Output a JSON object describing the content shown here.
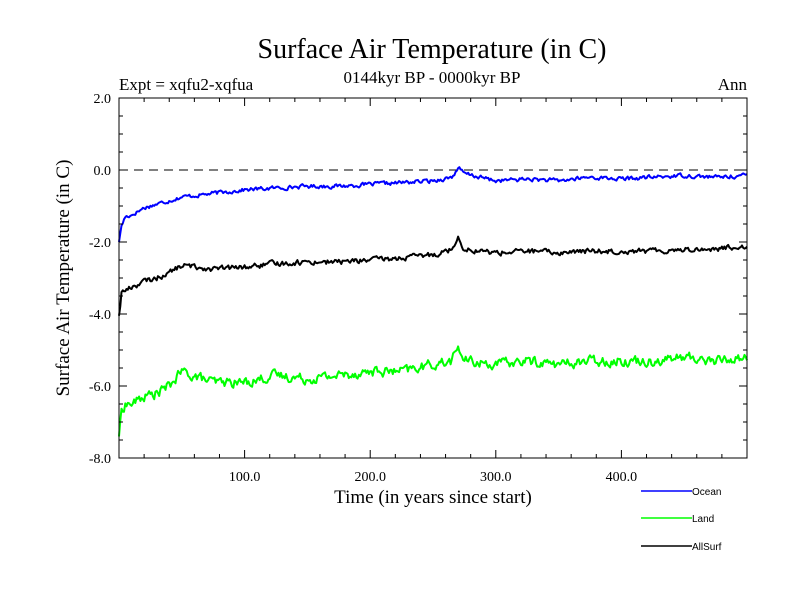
{
  "chart_data": {
    "type": "line",
    "title": "Surface Air Temperature (in C)",
    "subtitle": "0144kyr BP - 0000kyr BP",
    "left_label": "Expt = xqfu2-xqfua",
    "right_label": "Ann",
    "xlabel": "Time (in years since start)",
    "ylabel": "Surface Air Temperature (in C)",
    "xlim": [
      0,
      500
    ],
    "ylim": [
      -8.0,
      2.0
    ],
    "x_ticks": [
      100,
      200,
      300,
      400
    ],
    "x_tick_labels": [
      "100.0",
      "200.0",
      "300.0",
      "400.0"
    ],
    "y_ticks": [
      -8,
      -6,
      -4,
      -2,
      0,
      2
    ],
    "y_tick_labels": [
      "-8.0",
      "-6.0",
      "-4.0",
      "-2.0",
      "0.0",
      "2.0"
    ],
    "reference_line": 0.0,
    "legend_position": "bottom-right",
    "series": [
      {
        "name": "Ocean",
        "color": "#0000ff",
        "x": [
          0,
          2,
          5,
          10,
          20,
          30,
          40,
          50,
          75,
          100,
          125,
          150,
          175,
          200,
          225,
          250,
          265,
          270,
          275,
          300,
          325,
          350,
          375,
          400,
          425,
          450,
          475,
          500
        ],
        "y": [
          -2.0,
          -1.55,
          -1.3,
          -1.25,
          -1.05,
          -0.95,
          -0.85,
          -0.75,
          -0.65,
          -0.55,
          -0.5,
          -0.45,
          -0.45,
          -0.4,
          -0.35,
          -0.3,
          -0.2,
          0.05,
          -0.1,
          -0.3,
          -0.25,
          -0.3,
          -0.2,
          -0.25,
          -0.2,
          -0.15,
          -0.2,
          -0.15
        ]
      },
      {
        "name": "Land",
        "color": "#00ff00",
        "x": [
          0,
          2,
          5,
          10,
          20,
          30,
          40,
          50,
          75,
          100,
          125,
          150,
          175,
          200,
          225,
          250,
          265,
          270,
          275,
          300,
          325,
          350,
          375,
          400,
          425,
          450,
          475,
          500
        ],
        "y": [
          -7.4,
          -6.7,
          -6.5,
          -6.5,
          -6.3,
          -6.2,
          -6.0,
          -5.6,
          -5.9,
          -5.9,
          -5.7,
          -5.8,
          -5.7,
          -5.6,
          -5.6,
          -5.4,
          -5.3,
          -4.9,
          -5.3,
          -5.4,
          -5.3,
          -5.4,
          -5.3,
          -5.3,
          -5.3,
          -5.2,
          -5.3,
          -5.2
        ]
      },
      {
        "name": "AllSurf",
        "color": "#000000",
        "x": [
          0,
          2,
          5,
          10,
          20,
          30,
          40,
          50,
          75,
          100,
          125,
          150,
          175,
          200,
          225,
          250,
          265,
          270,
          275,
          300,
          325,
          350,
          375,
          400,
          425,
          450,
          475,
          500
        ],
        "y": [
          -4.05,
          -3.4,
          -3.35,
          -3.25,
          -3.1,
          -3.0,
          -2.85,
          -2.65,
          -2.75,
          -2.7,
          -2.6,
          -2.55,
          -2.55,
          -2.5,
          -2.45,
          -2.35,
          -2.2,
          -1.85,
          -2.2,
          -2.3,
          -2.25,
          -2.3,
          -2.25,
          -2.25,
          -2.25,
          -2.2,
          -2.2,
          -2.1
        ]
      }
    ]
  }
}
